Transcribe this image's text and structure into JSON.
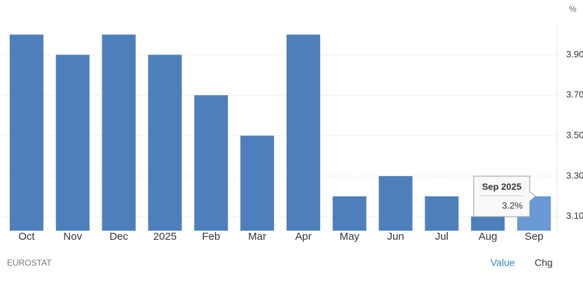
{
  "chart_data": {
    "type": "bar",
    "unit": "%",
    "categories": [
      "Oct",
      "Nov",
      "Dec",
      "2025",
      "Feb",
      "Mar",
      "Apr",
      "May",
      "Jun",
      "Jul",
      "Aug",
      "Sep"
    ],
    "values": [
      4.0,
      3.9,
      4.0,
      3.9,
      3.7,
      3.5,
      4.0,
      3.2,
      3.3,
      3.2,
      3.1,
      3.2
    ],
    "colors": [
      "#4d7fbc",
      "#4d7fbc",
      "#4d7fbc",
      "#4d7fbc",
      "#4d7fbc",
      "#4d7fbc",
      "#4d7fbc",
      "#4d7fbc",
      "#4d7fbc",
      "#4d7fbc",
      "#4d7fbc",
      "#6a9ad6"
    ],
    "ylim": [
      3.03,
      4.05
    ],
    "yticks": [
      {
        "value": 3.1,
        "label": "3.10"
      },
      {
        "value": 3.3,
        "label": "3.30"
      },
      {
        "value": 3.5,
        "label": "3.50"
      },
      {
        "value": 3.7,
        "label": "3.70"
      },
      {
        "value": 3.9,
        "label": "3.90"
      }
    ],
    "grid": true,
    "tooltip": {
      "title": "Sep 2025",
      "label": "3.2%"
    }
  },
  "footer": {
    "source": "EUROSTAT",
    "buttons": [
      "Value",
      "Chg"
    ]
  }
}
